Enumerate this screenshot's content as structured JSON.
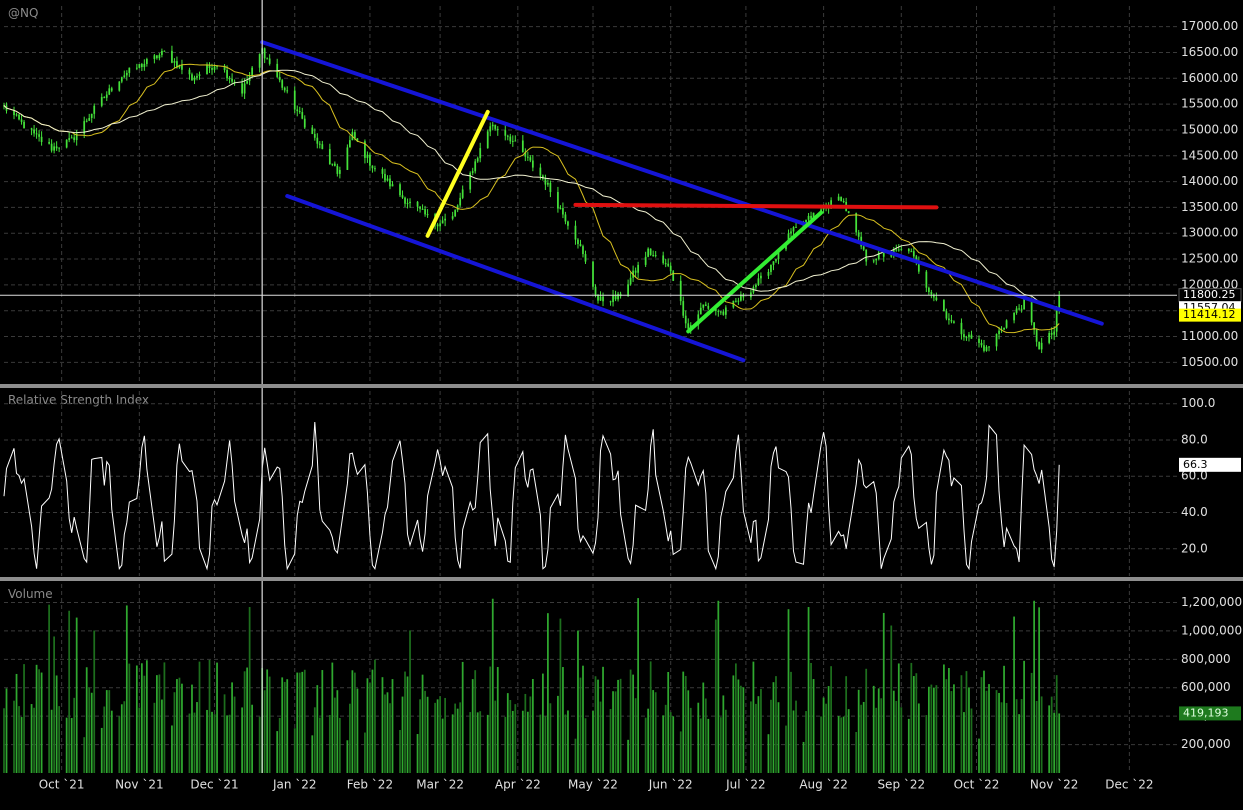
{
  "chart_data": [
    {
      "type": "candlestick",
      "title": "@NQ",
      "ylim": [
        10100,
        17400
      ],
      "yticks": [
        10500,
        11000,
        11500,
        12000,
        12500,
        13000,
        13500,
        14000,
        14500,
        15000,
        15500,
        16000,
        16500,
        17000
      ],
      "ytick_labels": [
        "10500.00",
        "11000.00",
        "11500.00",
        "12000.00",
        "12500.00",
        "13000.00",
        "13500.00",
        "14000.00",
        "14500.00",
        "15000.00",
        "15500.00",
        "16000.00",
        "16500.00",
        "17000.00"
      ],
      "price_path": [
        {
          "d": "2021-09-16",
          "v": 15450
        },
        {
          "d": "2021-09-28",
          "v": 14900
        },
        {
          "d": "2021-10-05",
          "v": 14650
        },
        {
          "d": "2021-10-13",
          "v": 14800
        },
        {
          "d": "2021-10-22",
          "v": 15400
        },
        {
          "d": "2021-11-02",
          "v": 16050
        },
        {
          "d": "2021-11-19",
          "v": 16500
        },
        {
          "d": "2021-11-30",
          "v": 16000
        },
        {
          "d": "2021-12-10",
          "v": 16300
        },
        {
          "d": "2021-12-20",
          "v": 15750
        },
        {
          "d": "2021-12-28",
          "v": 16550
        },
        {
          "d": "2022-01-05",
          "v": 15850
        },
        {
          "d": "2022-01-13",
          "v": 15200
        },
        {
          "d": "2022-01-27",
          "v": 14150
        },
        {
          "d": "2022-02-02",
          "v": 14900
        },
        {
          "d": "2022-02-10",
          "v": 14300
        },
        {
          "d": "2022-02-23",
          "v": 13650
        },
        {
          "d": "2022-03-07",
          "v": 13200
        },
        {
          "d": "2022-03-14",
          "v": 13300
        },
        {
          "d": "2022-03-29",
          "v": 15100
        },
        {
          "d": "2022-04-05",
          "v": 14900
        },
        {
          "d": "2022-04-20",
          "v": 14000
        },
        {
          "d": "2022-05-03",
          "v": 12850
        },
        {
          "d": "2022-05-11",
          "v": 11700
        },
        {
          "d": "2022-05-19",
          "v": 11750
        },
        {
          "d": "2022-05-31",
          "v": 12650
        },
        {
          "d": "2022-06-09",
          "v": 12300
        },
        {
          "d": "2022-06-16",
          "v": 11150
        },
        {
          "d": "2022-06-22",
          "v": 11600
        },
        {
          "d": "2022-06-30",
          "v": 11450
        },
        {
          "d": "2022-07-15",
          "v": 12100
        },
        {
          "d": "2022-07-27",
          "v": 13000
        },
        {
          "d": "2022-08-05",
          "v": 13350
        },
        {
          "d": "2022-08-16",
          "v": 13700
        },
        {
          "d": "2022-08-26",
          "v": 12500
        },
        {
          "d": "2022-09-12",
          "v": 12700
        },
        {
          "d": "2022-09-19",
          "v": 12000
        },
        {
          "d": "2022-09-30",
          "v": 11200
        },
        {
          "d": "2022-10-13",
          "v": 10750
        },
        {
          "d": "2022-10-21",
          "v": 11300
        },
        {
          "d": "2022-10-28",
          "v": 11650
        },
        {
          "d": "2022-11-03",
          "v": 10800
        },
        {
          "d": "2022-11-09",
          "v": 11100
        },
        {
          "d": "2022-11-11",
          "v": 11800
        }
      ],
      "last_price": 11800.25,
      "ma_fast_last": 11557.04,
      "ma_slow_last": 11414.12,
      "price_tags": [
        {
          "text": "11800.25",
          "value": 11800.25,
          "bg": "#000000",
          "fg": "#ffffff"
        },
        {
          "text": "11557.04",
          "value": 11557.04,
          "bg": "#ffffff",
          "fg": "#000000"
        },
        {
          "text": "11414.12",
          "value": 11414.12,
          "bg": "#ffff00",
          "fg": "#000000"
        }
      ],
      "trendlines": [
        {
          "color": "#1515d6",
          "from": {
            "d": "2021-12-28",
            "v": 16700
          },
          "to": {
            "d": "2022-11-28",
            "v": 11250
          }
        },
        {
          "color": "#1515d6",
          "from": {
            "d": "2022-01-07",
            "v": 13720
          },
          "to": {
            "d": "2022-07-08",
            "v": 10540
          }
        },
        {
          "color": "#e01010",
          "from": {
            "d": "2022-05-02",
            "v": 13550
          },
          "to": {
            "d": "2022-09-23",
            "v": 13500
          }
        },
        {
          "color": "#ffff20",
          "from": {
            "d": "2022-03-04",
            "v": 12950
          },
          "to": {
            "d": "2022-03-28",
            "v": 15350
          }
        },
        {
          "color": "#33ee33",
          "from": {
            "d": "2022-06-16",
            "v": 11100
          },
          "to": {
            "d": "2022-08-08",
            "v": 13400
          }
        }
      ],
      "crosshair_date": "2021-12-28",
      "crosshair_value": 11800.25
    },
    {
      "type": "line",
      "title": "Relative Strength Index",
      "ylim": [
        5,
        107
      ],
      "yticks": [
        20,
        40,
        60,
        80,
        100
      ],
      "ytick_labels": [
        "20.0",
        "40.0",
        "60.0",
        "80.0",
        "100.0"
      ],
      "last_value_label": "66.3",
      "last_value": 66.3
    },
    {
      "type": "bar",
      "title": "Volume",
      "ylim": [
        0,
        1330000
      ],
      "yticks": [
        200000,
        400000,
        600000,
        800000,
        1000000,
        1200000
      ],
      "ytick_labels": [
        "200,000",
        "400,000",
        "600,000",
        "800,000",
        "1,000,000",
        "1,200,000"
      ],
      "last_value_label": "419,193",
      "last_value": 419193,
      "volume_colors": [
        "#2fa82f",
        "#1d6e1d"
      ]
    }
  ],
  "x_axis": {
    "start": "2021-09-16",
    "end": "2022-12-28",
    "ticks": [
      {
        "d": "2021-10-09",
        "label": "Oct `21"
      },
      {
        "d": "2021-11-09",
        "label": "Nov `21"
      },
      {
        "d": "2021-12-09",
        "label": "Dec `21"
      },
      {
        "d": "2022-01-10",
        "label": "Jan `22"
      },
      {
        "d": "2022-02-09",
        "label": "Feb `22"
      },
      {
        "d": "2022-03-09",
        "label": "Mar `22"
      },
      {
        "d": "2022-04-09",
        "label": "Apr `22"
      },
      {
        "d": "2022-05-09",
        "label": "May `22"
      },
      {
        "d": "2022-06-09",
        "label": "Jun `22"
      },
      {
        "d": "2022-07-09",
        "label": "Jul `22"
      },
      {
        "d": "2022-08-09",
        "label": "Aug `22"
      },
      {
        "d": "2022-09-09",
        "label": "Sep `22"
      },
      {
        "d": "2022-10-09",
        "label": "Oct `22"
      },
      {
        "d": "2022-11-09",
        "label": "Nov `22"
      },
      {
        "d": "2022-12-09",
        "label": "Dec `22"
      }
    ]
  },
  "colors": {
    "background": "#000000",
    "grid": "#3a3a3a",
    "candle": "#44e23a",
    "ma_fast": "#f0f0d0",
    "ma_slow": "#d8c020",
    "rsi_line": "#ffffff",
    "crosshair": "#dddddd",
    "divider": "#9a9a9a"
  }
}
